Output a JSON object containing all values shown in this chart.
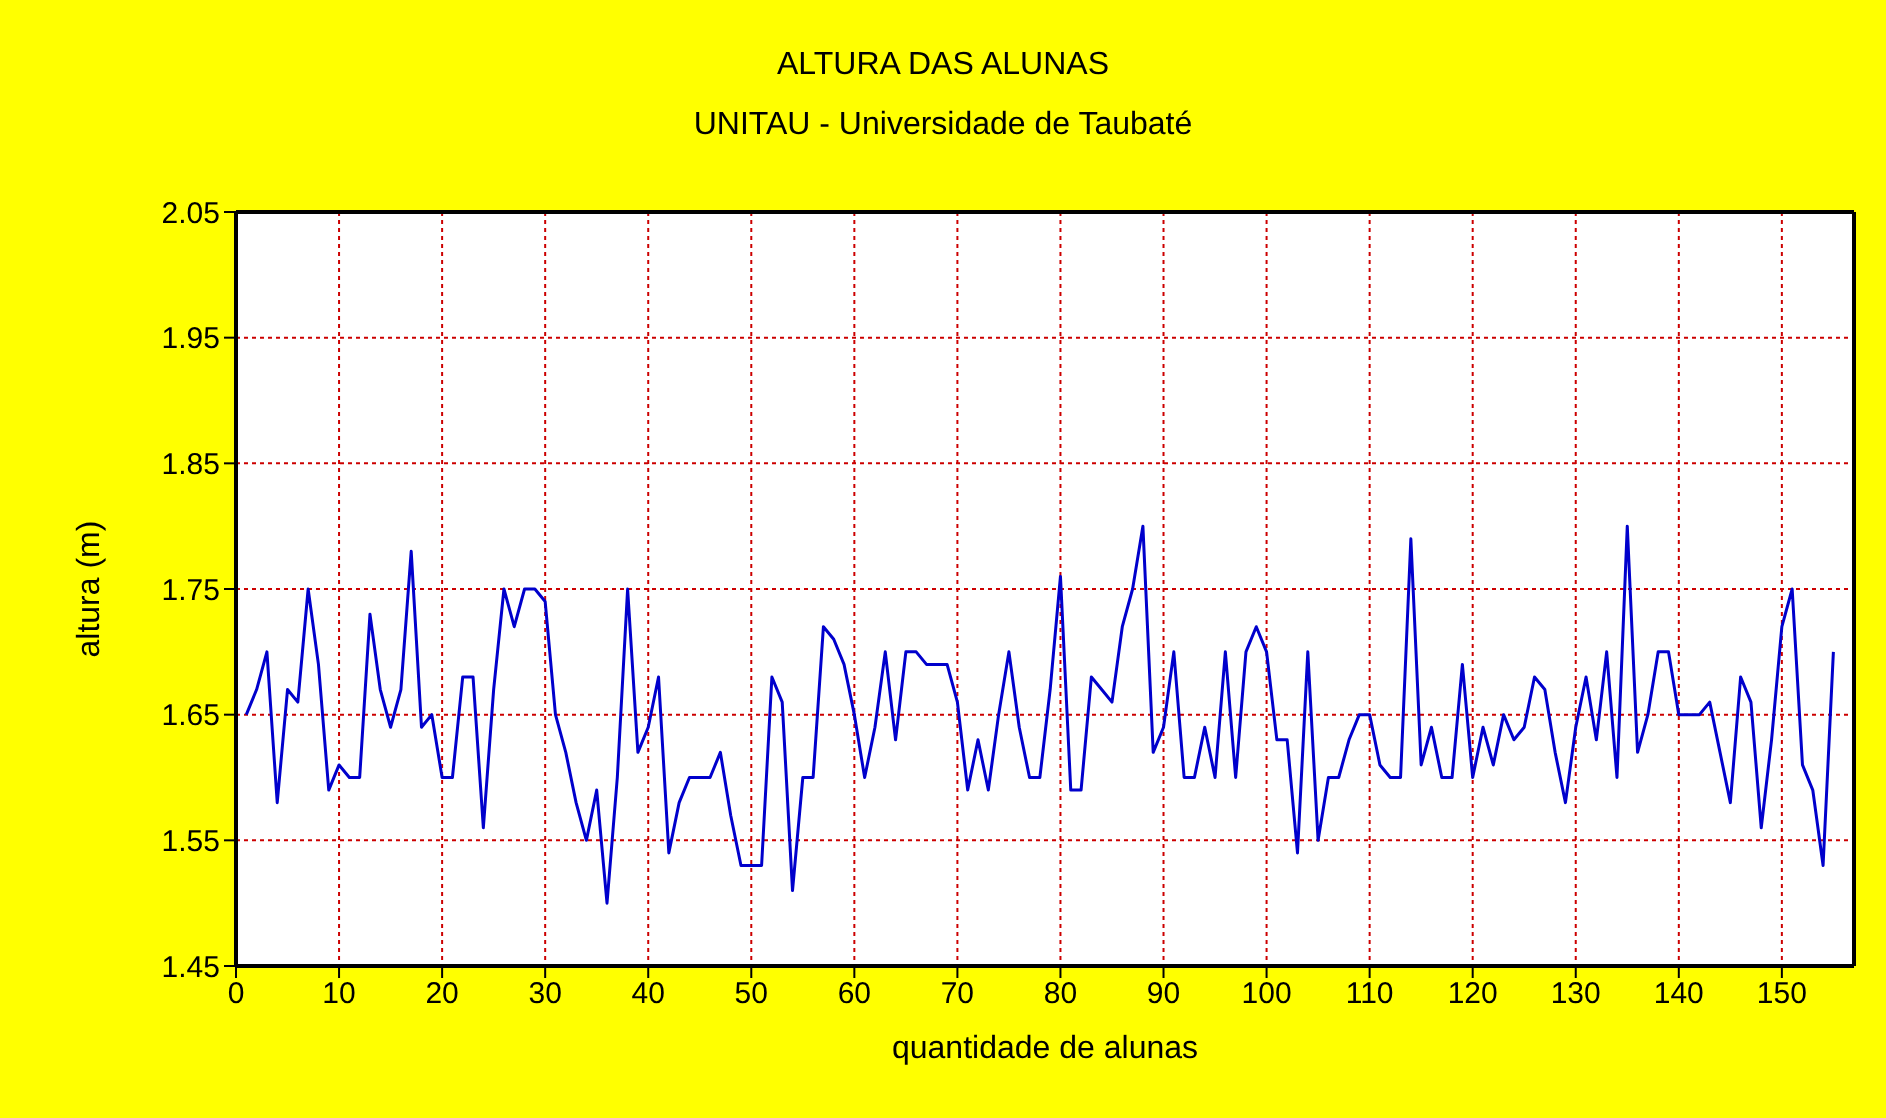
{
  "chart_data": {
    "type": "line",
    "title": "ALTURA DAS ALUNAS",
    "subtitle": "UNITAU - Universidade de Taubaté",
    "xlabel": "quantidade de alunas",
    "ylabel": "altura (m)",
    "x": [
      1,
      2,
      3,
      4,
      5,
      6,
      7,
      8,
      9,
      10,
      11,
      12,
      13,
      14,
      15,
      16,
      17,
      18,
      19,
      20,
      21,
      22,
      23,
      24,
      25,
      26,
      27,
      28,
      29,
      30,
      31,
      32,
      33,
      34,
      35,
      36,
      37,
      38,
      39,
      40,
      41,
      42,
      43,
      44,
      45,
      46,
      47,
      48,
      49,
      50,
      51,
      52,
      53,
      54,
      55,
      56,
      57,
      58,
      59,
      60,
      61,
      62,
      63,
      64,
      65,
      66,
      67,
      68,
      69,
      70,
      71,
      72,
      73,
      74,
      75,
      76,
      77,
      78,
      79,
      80,
      81,
      82,
      83,
      84,
      85,
      86,
      87,
      88,
      89,
      90,
      91,
      92,
      93,
      94,
      95,
      96,
      97,
      98,
      99,
      100,
      101,
      102,
      103,
      104,
      105,
      106,
      107,
      108,
      109,
      110,
      111,
      112,
      113,
      114,
      115,
      116,
      117,
      118,
      119,
      120,
      121,
      122,
      123,
      124,
      125,
      126,
      127,
      128,
      129,
      130,
      131,
      132,
      133,
      134,
      135,
      136,
      137,
      138,
      139,
      140,
      141,
      142,
      143,
      144,
      145,
      146,
      147,
      148,
      149,
      150,
      151,
      152,
      153,
      154,
      155
    ],
    "series": [
      {
        "color": "#0000cc",
        "values": [
          1.65,
          1.67,
          1.7,
          1.58,
          1.67,
          1.66,
          1.75,
          1.69,
          1.59,
          1.61,
          1.6,
          1.6,
          1.73,
          1.67,
          1.64,
          1.67,
          1.78,
          1.64,
          1.65,
          1.6,
          1.6,
          1.68,
          1.68,
          1.56,
          1.67,
          1.75,
          1.72,
          1.75,
          1.75,
          1.74,
          1.65,
          1.62,
          1.58,
          1.55,
          1.59,
          1.5,
          1.6,
          1.75,
          1.62,
          1.64,
          1.68,
          1.54,
          1.58,
          1.6,
          1.6,
          1.6,
          1.62,
          1.57,
          1.53,
          1.53,
          1.53,
          1.68,
          1.66,
          1.51,
          1.6,
          1.6,
          1.72,
          1.71,
          1.69,
          1.65,
          1.6,
          1.64,
          1.7,
          1.63,
          1.7,
          1.7,
          1.69,
          1.69,
          1.69,
          1.66,
          1.59,
          1.63,
          1.59,
          1.65,
          1.7,
          1.64,
          1.6,
          1.6,
          1.67,
          1.76,
          1.59,
          1.59,
          1.68,
          1.67,
          1.66,
          1.72,
          1.75,
          1.8,
          1.62,
          1.64,
          1.7,
          1.6,
          1.6,
          1.64,
          1.6,
          1.7,
          1.6,
          1.7,
          1.72,
          1.7,
          1.63,
          1.63,
          1.54,
          1.7,
          1.55,
          1.6,
          1.6,
          1.63,
          1.65,
          1.65,
          1.61,
          1.6,
          1.6,
          1.79,
          1.61,
          1.64,
          1.6,
          1.6,
          1.69,
          1.6,
          1.64,
          1.61,
          1.65,
          1.63,
          1.64,
          1.68,
          1.67,
          1.62,
          1.58,
          1.64,
          1.68,
          1.63,
          1.7,
          1.6,
          1.8,
          1.62,
          1.65,
          1.7,
          1.7,
          1.65,
          1.65,
          1.65,
          1.66,
          1.62,
          1.58,
          1.68,
          1.66,
          1.56,
          1.63,
          1.72,
          1.75,
          1.61,
          1.59,
          1.53,
          1.7
        ]
      }
    ],
    "xlim": [
      0,
      157
    ],
    "xticks": [
      0,
      10,
      20,
      30,
      40,
      50,
      60,
      70,
      80,
      90,
      100,
      110,
      120,
      130,
      140,
      150
    ],
    "ylim": [
      1.45,
      2.05
    ],
    "yticks": [
      1.45,
      1.55,
      1.65,
      1.75,
      1.85,
      1.95,
      2.05
    ],
    "grid": true,
    "marker": "none",
    "line_style": "solid"
  }
}
